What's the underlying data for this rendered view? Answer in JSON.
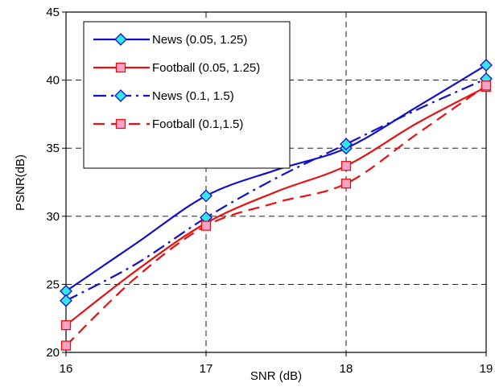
{
  "chart_data": {
    "type": "line",
    "title": "",
    "xlabel": "SNR (dB)",
    "ylabel": "PSNR(dB)",
    "x": [
      16,
      17,
      18,
      19
    ],
    "xlim": [
      16,
      19
    ],
    "ylim": [
      20,
      45
    ],
    "xticks": [
      "16",
      "17",
      "18",
      "19"
    ],
    "yticks": [
      "20",
      "25",
      "30",
      "35",
      "40",
      "45"
    ],
    "grid": true,
    "legend_position": "top-left",
    "series": [
      {
        "name": "News (0.05, 1.25)",
        "color": "#1010c8",
        "marker": "diamond",
        "dash": "solid",
        "values": [
          24.5,
          31.5,
          35.0,
          41.1
        ],
        "curve": [
          [
            16,
            24.5
          ],
          [
            16.5,
            28.0
          ],
          [
            17,
            31.5
          ],
          [
            17.5,
            33.4
          ],
          [
            18,
            35.0
          ],
          [
            18.5,
            38.0
          ],
          [
            19,
            41.1
          ]
        ]
      },
      {
        "name": "Football (0.05, 1.25)",
        "color": "#e81010",
        "marker": "square",
        "dash": "solid",
        "values": [
          22.0,
          29.5,
          33.7,
          39.5
        ],
        "curve": [
          [
            16,
            22.0
          ],
          [
            16.5,
            26.0
          ],
          [
            17,
            29.5
          ],
          [
            17.5,
            31.8
          ],
          [
            18,
            33.7
          ],
          [
            18.5,
            36.8
          ],
          [
            19,
            39.5
          ]
        ]
      },
      {
        "name": "News (0.1, 1.5)",
        "color": "#1010c8",
        "marker": "diamond",
        "dash": "dashdot",
        "values": [
          23.8,
          29.9,
          35.3,
          40.1
        ],
        "curve": [
          [
            16,
            23.8
          ],
          [
            16.5,
            26.5
          ],
          [
            17,
            29.9
          ],
          [
            17.5,
            32.8
          ],
          [
            18,
            35.3
          ],
          [
            18.5,
            37.8
          ],
          [
            19,
            40.1
          ]
        ]
      },
      {
        "name": "Football (0.1,1.5)",
        "color": "#e81010",
        "marker": "square",
        "dash": "dashed",
        "values": [
          20.5,
          29.3,
          32.4,
          39.6
        ],
        "curve": [
          [
            16,
            20.5
          ],
          [
            16.5,
            25.5
          ],
          [
            17,
            29.3
          ],
          [
            17.5,
            31.0
          ],
          [
            18,
            32.4
          ],
          [
            18.5,
            36.0
          ],
          [
            19,
            39.6
          ]
        ]
      }
    ]
  }
}
